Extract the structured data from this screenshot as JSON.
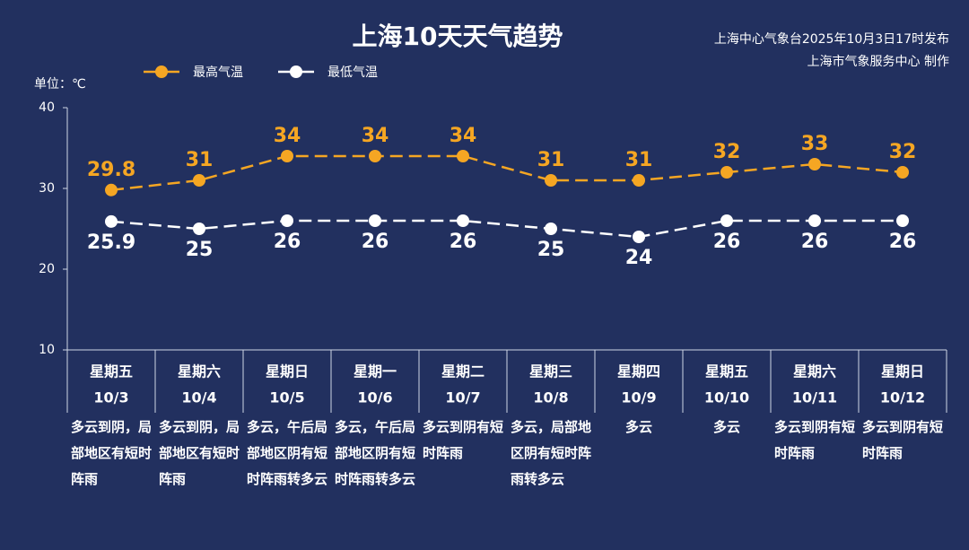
{
  "chart_data": {
    "type": "line",
    "title": "上海10天天气趋势",
    "source": [
      "上海中心气象台2025年10月3日17时发布",
      "上海市气象服务中心 制作"
    ],
    "y_label": "单位：℃",
    "categories": [
      "10/3",
      "10/4",
      "10/5",
      "10/6",
      "10/7",
      "10/8",
      "10/9",
      "10/10",
      "10/11",
      "10/12"
    ],
    "weekdays": [
      "星期五",
      "星期六",
      "星期日",
      "星期一",
      "星期二",
      "星期三",
      "星期四",
      "星期五",
      "星期六",
      "星期日"
    ],
    "descriptions": [
      "多云到阴，局部地区有短时阵雨",
      "多云到阴，局部地区有短时阵雨",
      "多云，午后局部地区阴有短时阵雨转多云",
      "多云，午后局部地区阴有短时阵雨转多云",
      "多云到阴有短时阵雨",
      "多云，局部地区阴有短时阵雨转多云",
      "多云",
      "多云",
      "多云到阴有短时阵雨",
      "多云到阴有短时阵雨"
    ],
    "series": [
      {
        "name": "最高气温",
        "color": "#f5a623",
        "values": [
          29.8,
          31,
          34,
          34,
          34,
          31,
          31,
          32,
          33,
          32
        ]
      },
      {
        "name": "最低气温",
        "color": "#ffffff",
        "values": [
          25.9,
          25,
          26,
          26,
          26,
          25,
          24,
          26,
          26,
          26
        ]
      }
    ],
    "ylim": [
      10,
      40
    ],
    "yticks": [
      10,
      20,
      30,
      40
    ]
  }
}
